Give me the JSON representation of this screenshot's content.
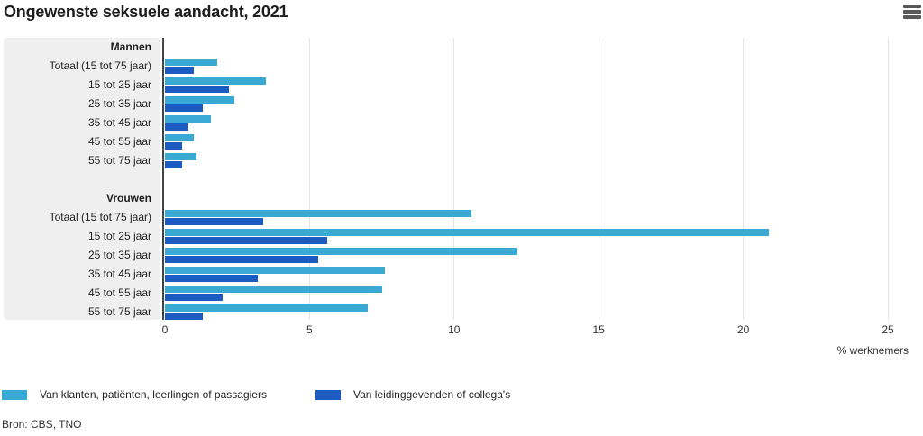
{
  "header": {
    "title": "Ongewenste seksuele aandacht, 2021"
  },
  "chart_data": {
    "type": "bar",
    "orientation": "horizontal",
    "title": "Ongewenste seksuele aandacht, 2021",
    "xlabel": "% werknemers",
    "xlim": [
      0,
      25
    ],
    "x_ticks": [
      0,
      5,
      10,
      15,
      20,
      25
    ],
    "grid": true,
    "legend_position": "bottom",
    "series": [
      {
        "name": "Van klanten, patiënten, leerlingen of passagiers",
        "color": "#3aa9d4"
      },
      {
        "name": "Van leidinggevenden of collega's",
        "color": "#1c5bc2"
      }
    ],
    "groups": [
      {
        "label": "Mannen",
        "rows": [
          {
            "category": "Totaal (15 tot 75 jaar)",
            "values": [
              1.8,
              1.0
            ]
          },
          {
            "category": "15 tot 25 jaar",
            "values": [
              3.5,
              2.2
            ]
          },
          {
            "category": "25 tot 35 jaar",
            "values": [
              2.4,
              1.3
            ]
          },
          {
            "category": "35 tot 45 jaar",
            "values": [
              1.6,
              0.8
            ]
          },
          {
            "category": "45 tot 55 jaar",
            "values": [
              1.0,
              0.6
            ]
          },
          {
            "category": "55 tot 75 jaar",
            "values": [
              1.1,
              0.6
            ]
          }
        ]
      },
      {
        "label": "Vrouwen",
        "rows": [
          {
            "category": "Totaal (15 tot 75 jaar)",
            "values": [
              10.6,
              3.4
            ]
          },
          {
            "category": "15 tot 25 jaar",
            "values": [
              20.9,
              5.6
            ]
          },
          {
            "category": "25 tot 35 jaar",
            "values": [
              12.2,
              5.3
            ]
          },
          {
            "category": "35 tot 45 jaar",
            "values": [
              7.6,
              3.2
            ]
          },
          {
            "category": "45 tot 55 jaar",
            "values": [
              7.5,
              2.0
            ]
          },
          {
            "category": "55 tot 75 jaar",
            "values": [
              7.0,
              1.3
            ]
          }
        ]
      }
    ]
  },
  "source": "Bron: CBS, TNO"
}
